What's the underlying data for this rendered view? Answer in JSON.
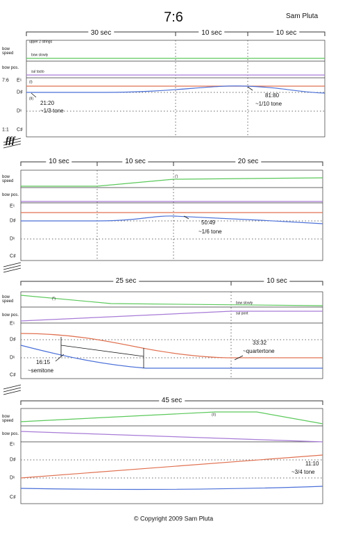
{
  "header": {
    "title": "7:6",
    "composer": "Sam Pluta"
  },
  "systems": [
    {
      "durations": [
        "30 sec",
        "10 sec",
        "10 sec"
      ],
      "instruction": "upper 2 strings",
      "rows": [
        "bow speed",
        "bow pos.",
        "E♮",
        "D♯",
        "D♮",
        "C♯"
      ],
      "ratios": [
        "7:6",
        "1:1"
      ],
      "annotations": [
        "bow slowly",
        "sul tasto",
        "(I)",
        "(II)",
        "21:20",
        "~1/3 tone",
        "81:80",
        "~1/10 tone"
      ]
    },
    {
      "dynamic": "fff",
      "durations": [
        "10 sec",
        "10 sec",
        "20 sec"
      ],
      "rows": [
        "bow speed",
        "bow pos.",
        "E♮",
        "D♯",
        "D♮",
        "C♯"
      ],
      "annotations": [
        "(')",
        "50:49",
        "~1/6 tone"
      ]
    },
    {
      "durations": [
        "25 sec",
        "10 sec"
      ],
      "rows": [
        "bow speed",
        "bow pos.",
        "E♮",
        "D♯",
        "D♮",
        "C♯"
      ],
      "annotations": [
        "(‴)",
        "bow slowly",
        "sul pont",
        "16:15",
        "~semitone",
        "33:32",
        "~quartertone"
      ]
    },
    {
      "durations": [
        "45 sec"
      ],
      "rows": [
        "bow speed",
        "bow pos.",
        "E♮",
        "D♯",
        "D♮",
        "C♯"
      ],
      "annotations": [
        "(#)",
        "11:10",
        "~3/4 tone"
      ]
    }
  ],
  "footer": "© Copyright 2009 Sam Pluta"
}
